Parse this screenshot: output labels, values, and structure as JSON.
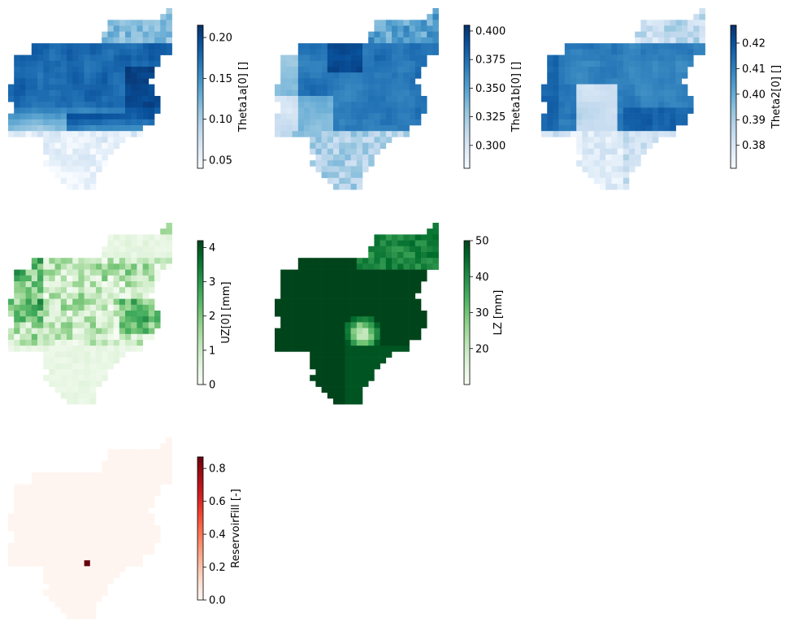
{
  "chart_data": [
    {
      "type": "heatmap",
      "colorbar_label": "Theta1a[0] []",
      "colormap": "Blues",
      "colorbar_range": [
        0.04,
        0.215
      ],
      "colorbar_ticks": [
        0.05,
        0.1,
        0.15,
        0.2
      ],
      "colorbar_tick_labels": [
        "0.05",
        "0.10",
        "0.15",
        "0.20"
      ],
      "spatial_pattern": "high values (~0.15-0.21) in central and northern parts of the basin, low values (~0.04-0.10) in the southern lobe"
    },
    {
      "type": "heatmap",
      "colorbar_label": "Theta1b[0] []",
      "colormap": "Blues",
      "colorbar_range": [
        0.28,
        0.405
      ],
      "colorbar_ticks": [
        0.3,
        0.325,
        0.35,
        0.375,
        0.4
      ],
      "colorbar_tick_labels": [
        "0.300",
        "0.325",
        "0.350",
        "0.375",
        "0.400"
      ],
      "spatial_pattern": "high values (~0.37-0.40) in the center and north, lower values (~0.30-0.33) on the west and southern lobe"
    },
    {
      "type": "heatmap",
      "colorbar_label": "Theta2[0] []",
      "colormap": "Blues",
      "colorbar_range": [
        0.371,
        0.427
      ],
      "colorbar_ticks": [
        0.38,
        0.39,
        0.4,
        0.41,
        0.42
      ],
      "colorbar_tick_labels": [
        "0.38",
        "0.39",
        "0.40",
        "0.41",
        "0.42"
      ],
      "spatial_pattern": "high values (~0.41-0.42) in the north-west and center, low values (~0.37-0.38) in the southern lobe and north-east arm"
    },
    {
      "type": "heatmap",
      "colorbar_label": "UZ[0] [mm]",
      "colormap": "Greens",
      "colorbar_range": [
        0,
        4.2
      ],
      "colorbar_ticks": [
        0,
        1,
        2,
        3,
        4
      ],
      "colorbar_tick_labels": [
        "0",
        "1",
        "2",
        "3",
        "4"
      ],
      "spatial_pattern": "patchy values 0-4 mm, highest on the western edge and east-center, near zero in the north-east arm and southern lobe"
    },
    {
      "type": "heatmap",
      "colorbar_label": "LZ [mm]",
      "colormap": "Greens",
      "colorbar_range": [
        10,
        50
      ],
      "colorbar_ticks": [
        20,
        30,
        40,
        50
      ],
      "colorbar_tick_labels": [
        "20",
        "30",
        "40",
        "50"
      ],
      "spatial_pattern": "saturated at ~50 mm almost everywhere, north-east arm ~40-45 mm, small depression (~10-30 mm) in the south-center"
    },
    {
      "type": "heatmap",
      "colorbar_label": "ReservoirFill [-]",
      "colormap": "Reds",
      "colorbar_range": [
        0,
        0.87
      ],
      "colorbar_ticks": [
        0.0,
        0.2,
        0.4,
        0.6,
        0.8
      ],
      "colorbar_tick_labels": [
        "0.0",
        "0.2",
        "0.4",
        "0.6",
        "0.8"
      ],
      "spatial_pattern": "zero everywhere except a single reservoir cell with fill ~0.87 in the south-west"
    }
  ]
}
